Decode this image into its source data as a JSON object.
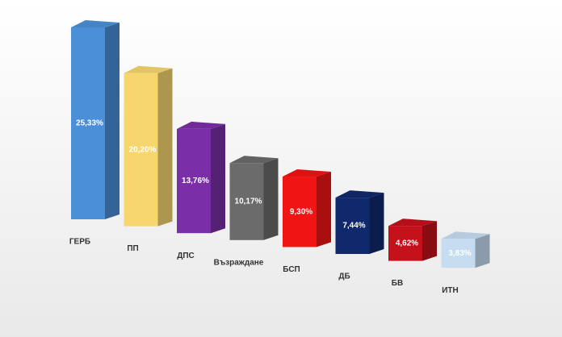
{
  "chart_data": {
    "type": "bar3d",
    "categories": [
      "ГЕРБ",
      "ПП",
      "ДПС",
      "Възраждане",
      "БСП",
      "ДБ",
      "БВ",
      "ИТН"
    ],
    "values": [
      25.33,
      20.2,
      13.76,
      10.17,
      9.3,
      7.44,
      4.62,
      3.83
    ],
    "value_labels": [
      "25,33%",
      "20,20%",
      "13,76%",
      "10,17%",
      "9,30%",
      "7,44%",
      "4,62%",
      "3,83%"
    ],
    "colors": [
      "#4a8fd8",
      "#f7d66e",
      "#7a2fa6",
      "#6b6b6b",
      "#f01414",
      "#10296c",
      "#c5111b",
      "#c6ddf1"
    ]
  }
}
